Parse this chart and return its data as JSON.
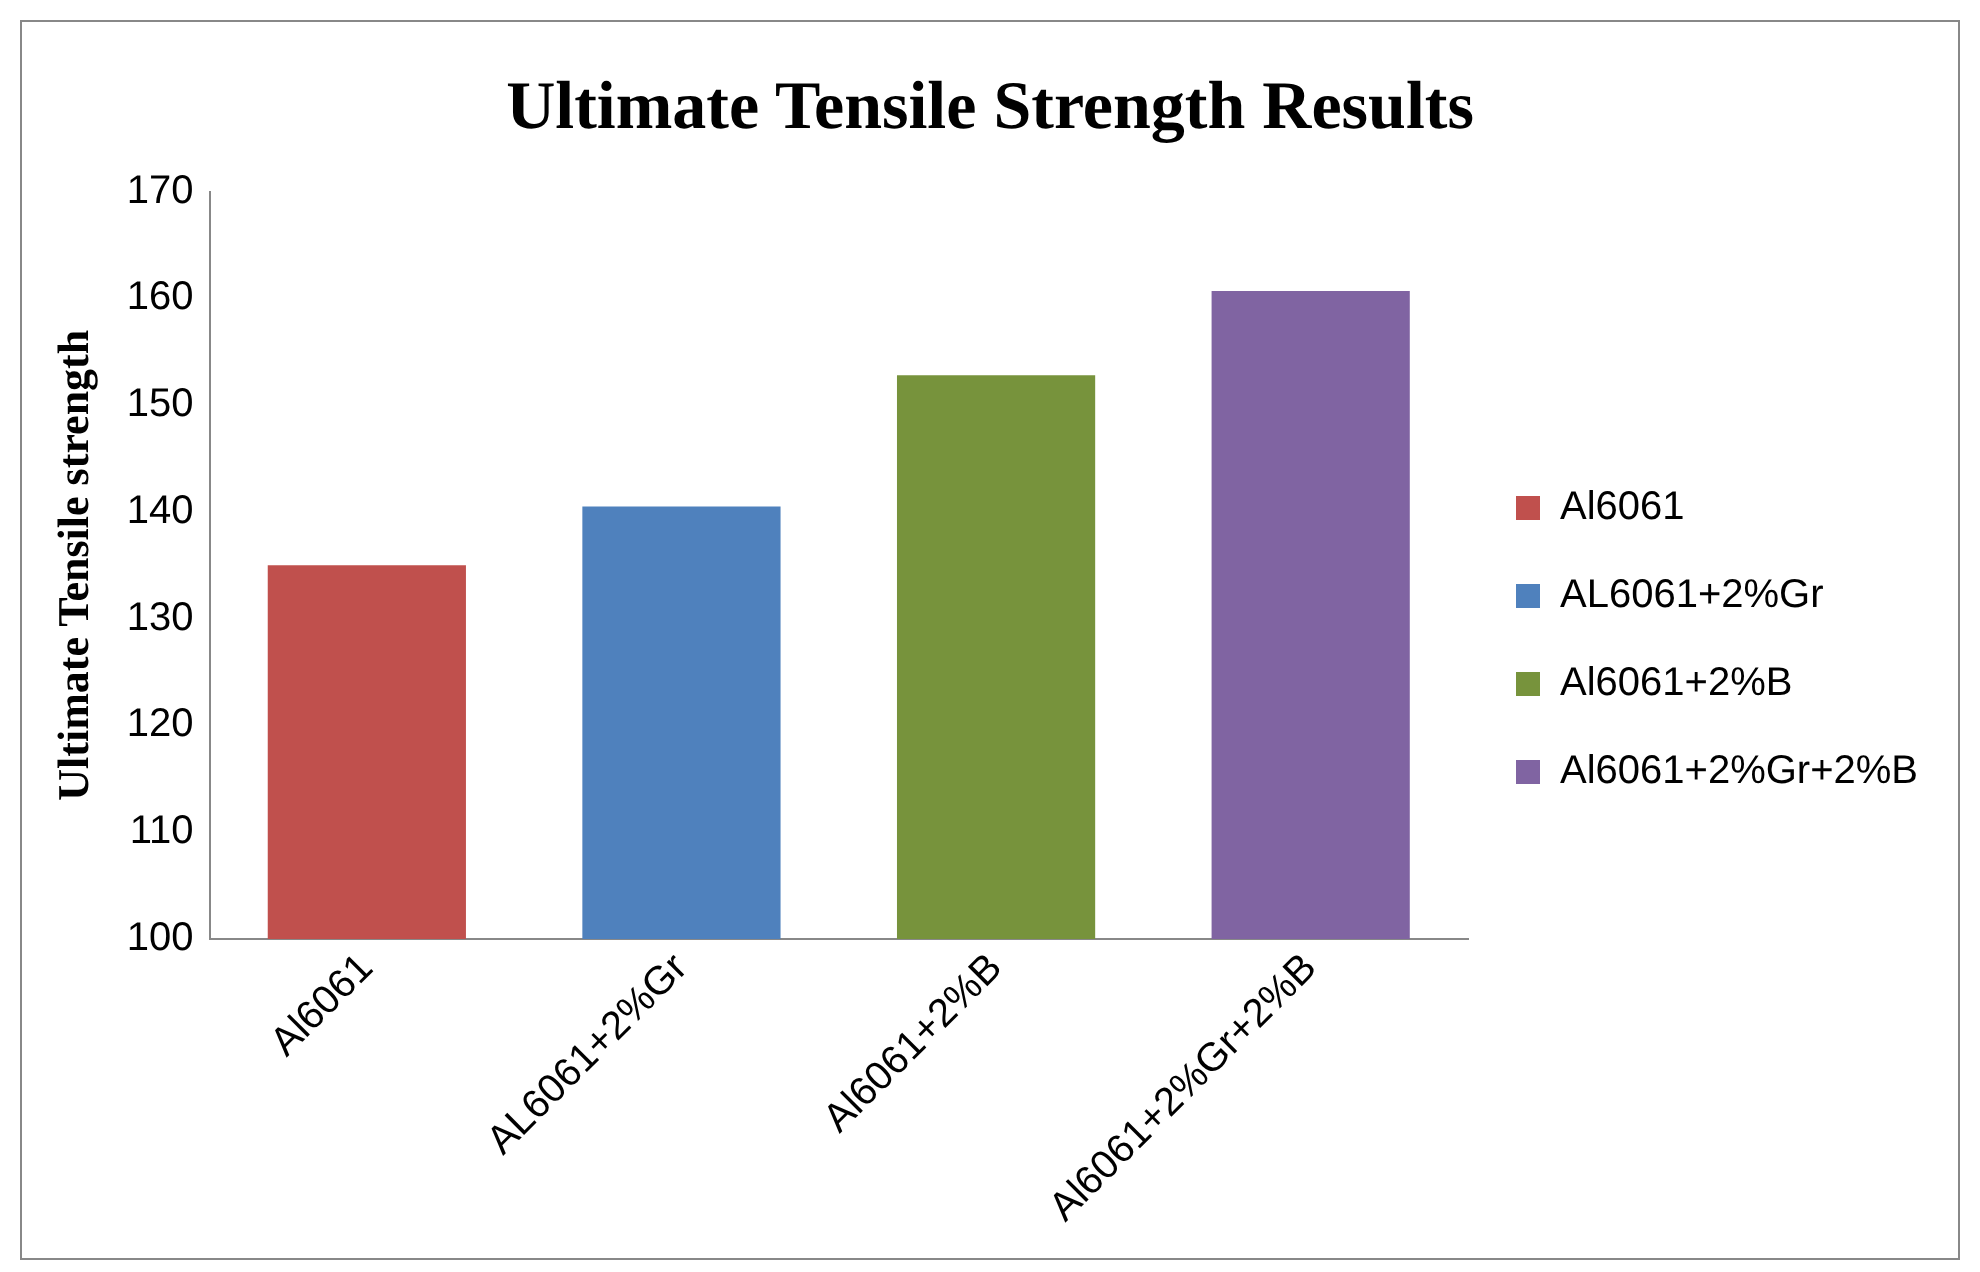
{
  "chart_data": {
    "type": "bar",
    "title": "Ultimate Tensile Strength Results",
    "ylabel": "Ultimate Tensile strength",
    "categories": [
      "Al6061",
      "AL6061+2%Gr",
      "Al6061+2%B",
      "Al6061+2%Gr+2%B"
    ],
    "series": [
      {
        "name": "Al6061",
        "color": "#c0504d",
        "values": [
          135,
          null,
          null,
          null
        ]
      },
      {
        "name": "AL6061+2%Gr",
        "color": "#4f81bd",
        "values": [
          null,
          140.5,
          null,
          null
        ]
      },
      {
        "name": "Al6061+2%B",
        "color": "#77933c",
        "values": [
          null,
          null,
          152.8,
          null
        ]
      },
      {
        "name": "Al6061+2%Gr+2%B",
        "color": "#8064a2",
        "values": [
          null,
          null,
          null,
          160.7
        ]
      }
    ],
    "ylim": [
      100,
      170
    ],
    "yticks": [
      100,
      110,
      120,
      130,
      140,
      150,
      160,
      170
    ],
    "grid": false,
    "legend": "right"
  }
}
